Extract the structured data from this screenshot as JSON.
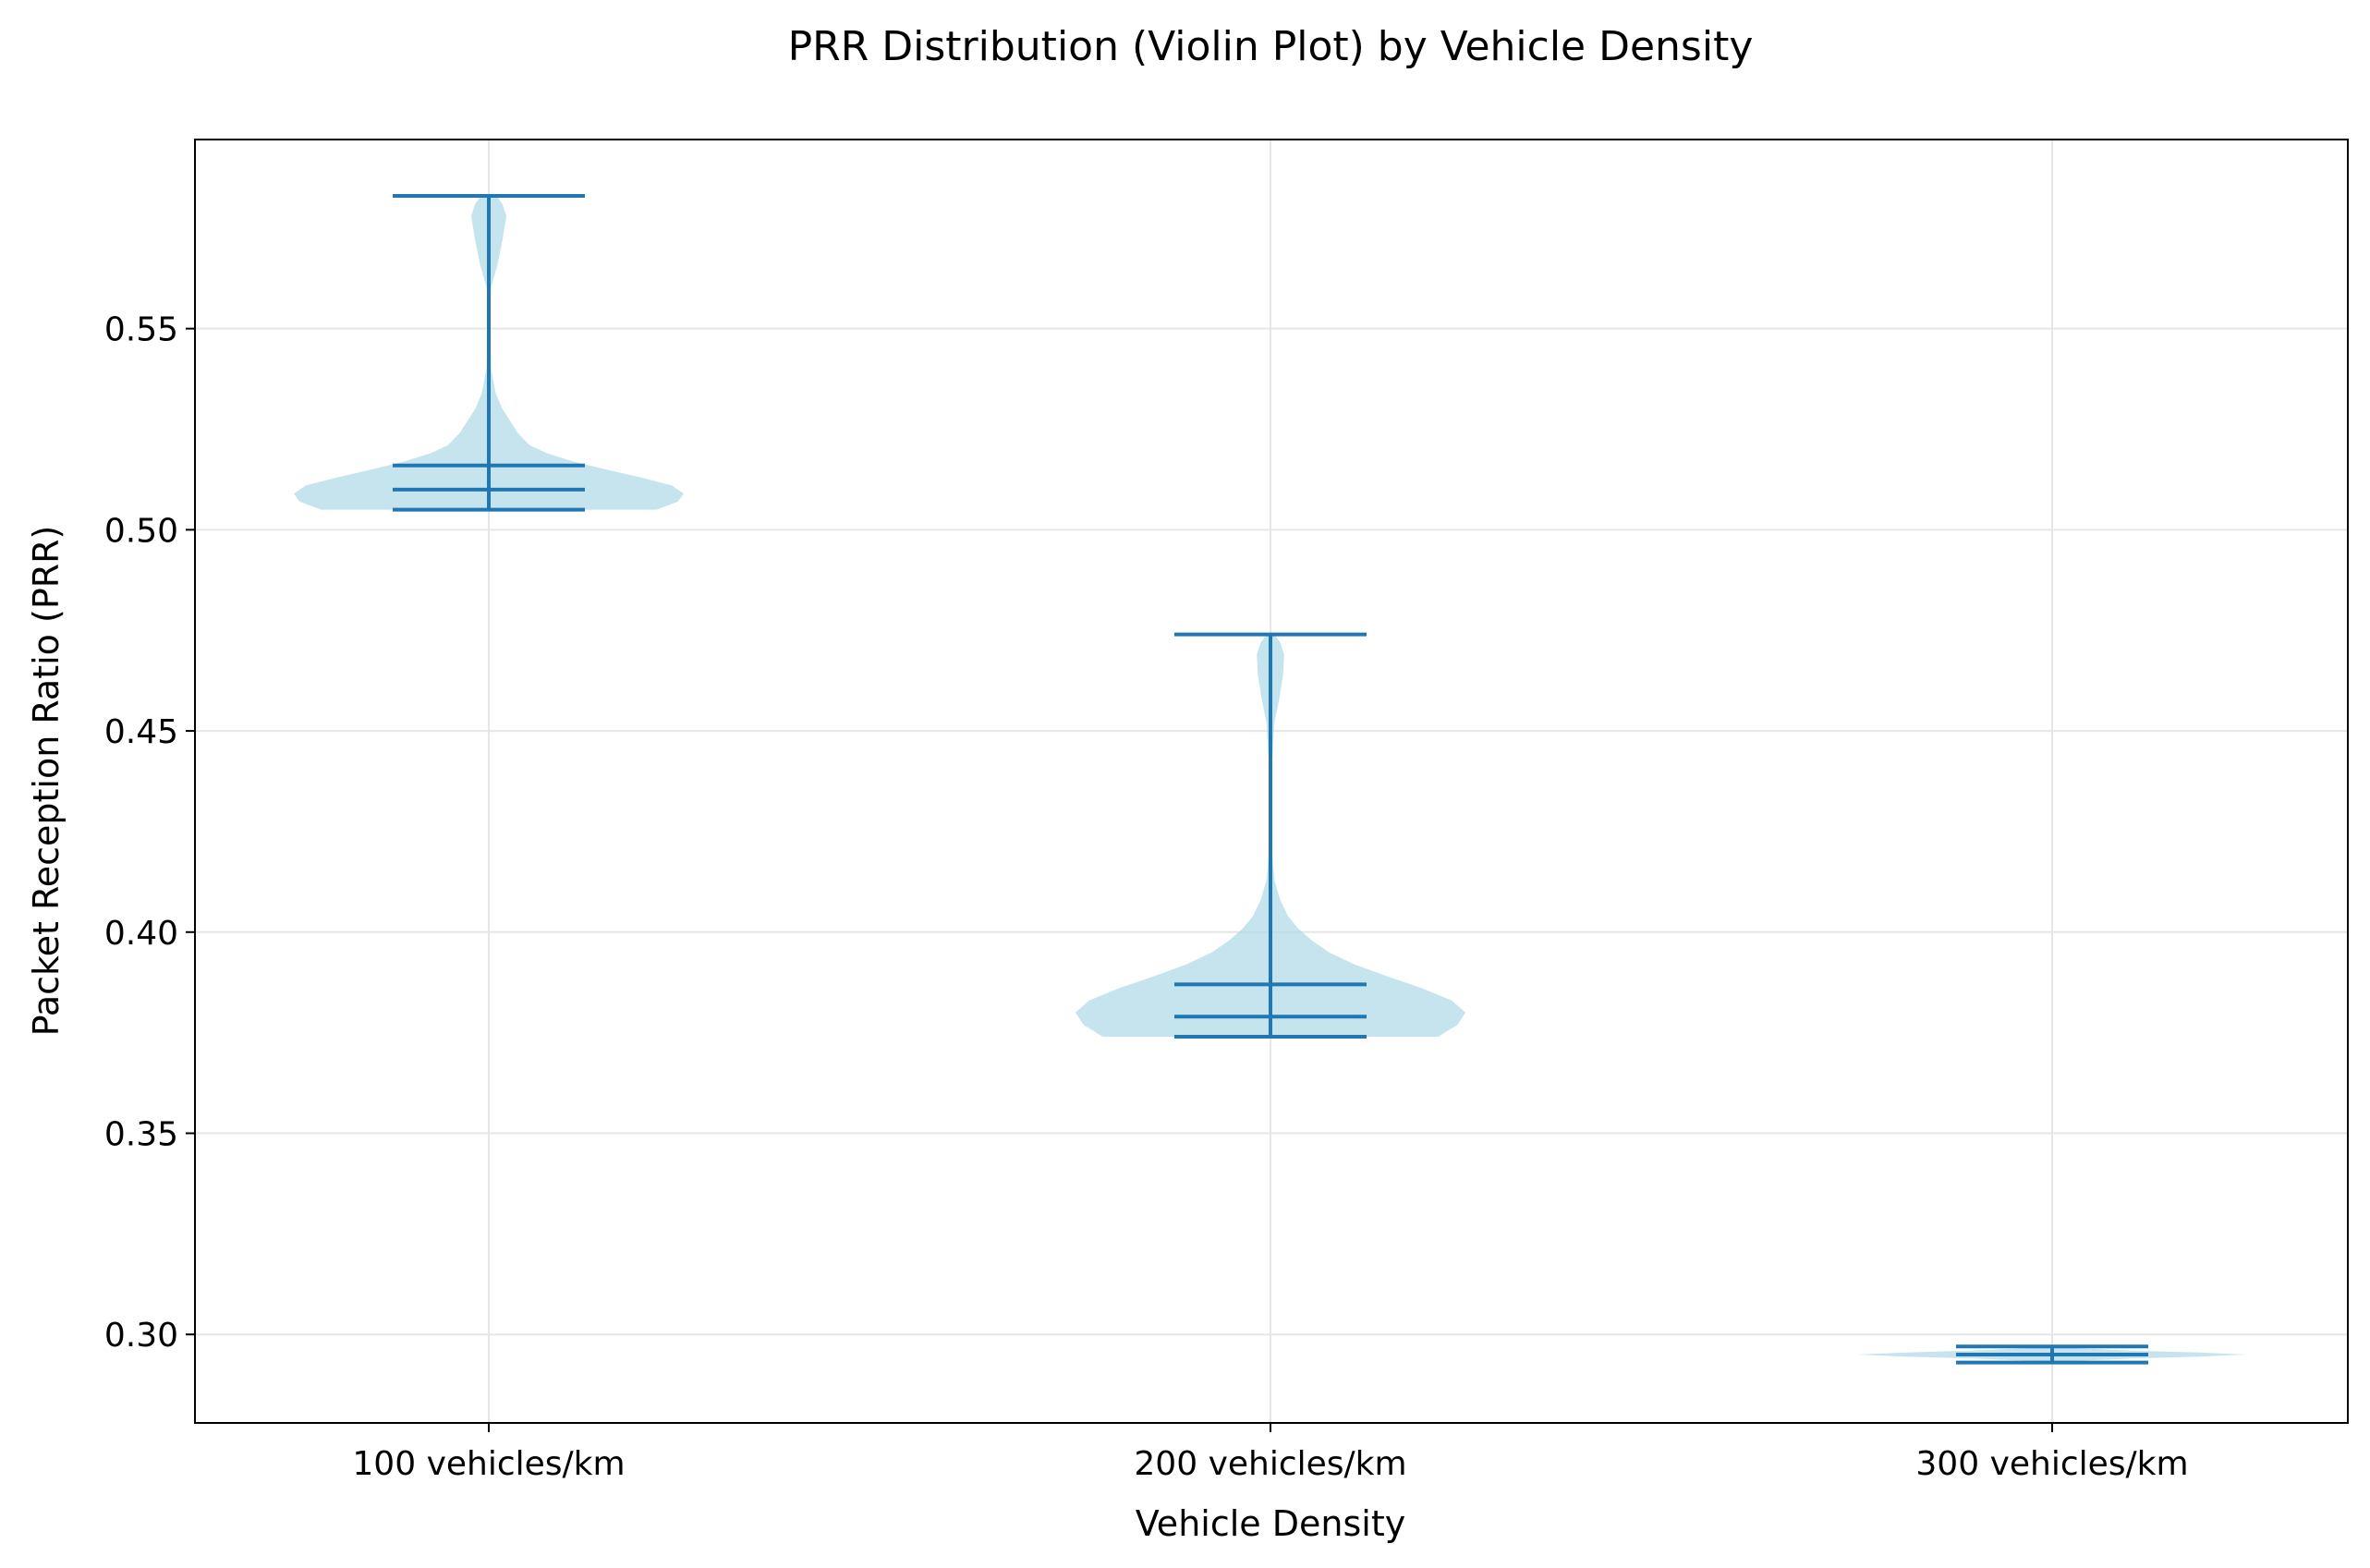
{
  "chart_data": {
    "type": "violin",
    "title": "PRR Distribution (Violin Plot) by Vehicle Density",
    "xlabel": "Vehicle Density",
    "ylabel": "Packet Reception Ratio (PRR)",
    "ylim": [
      0.278,
      0.597
    ],
    "yticks": [
      0.3,
      0.35,
      0.4,
      0.45,
      0.5,
      0.55
    ],
    "ytick_labels": [
      "0.30",
      "0.35",
      "0.40",
      "0.45",
      "0.50",
      "0.55"
    ],
    "categories": [
      "100 vehicles/km",
      "200 vehicles/km",
      "300 vehicles/km"
    ],
    "grid": true,
    "colors": {
      "violin_fill": "#add8e6",
      "lines": "#1f77b4",
      "grid": "#e6e6e6"
    },
    "violins": [
      {
        "category": "100 vehicles/km",
        "min": 0.505,
        "max": 0.583,
        "median": 0.51,
        "mean": 0.516,
        "density": [
          [
            0.505,
            0.86
          ],
          [
            0.507,
            0.97
          ],
          [
            0.509,
            1.0
          ],
          [
            0.511,
            0.94
          ],
          [
            0.513,
            0.78
          ],
          [
            0.515,
            0.6
          ],
          [
            0.517,
            0.43
          ],
          [
            0.519,
            0.3
          ],
          [
            0.521,
            0.21
          ],
          [
            0.524,
            0.15
          ],
          [
            0.527,
            0.11
          ],
          [
            0.53,
            0.07
          ],
          [
            0.534,
            0.035
          ],
          [
            0.54,
            0.012
          ],
          [
            0.55,
            0.005
          ],
          [
            0.56,
            0.01
          ],
          [
            0.566,
            0.045
          ],
          [
            0.572,
            0.07
          ],
          [
            0.578,
            0.09
          ],
          [
            0.581,
            0.07
          ],
          [
            0.583,
            0.04
          ]
        ]
      },
      {
        "category": "200 vehicles/km",
        "min": 0.374,
        "max": 0.474,
        "median": 0.379,
        "mean": 0.387,
        "density": [
          [
            0.374,
            0.86
          ],
          [
            0.377,
            0.96
          ],
          [
            0.38,
            1.0
          ],
          [
            0.383,
            0.93
          ],
          [
            0.386,
            0.78
          ],
          [
            0.389,
            0.6
          ],
          [
            0.392,
            0.43
          ],
          [
            0.395,
            0.3
          ],
          [
            0.398,
            0.21
          ],
          [
            0.401,
            0.14
          ],
          [
            0.404,
            0.09
          ],
          [
            0.408,
            0.05
          ],
          [
            0.413,
            0.02
          ],
          [
            0.42,
            0.008
          ],
          [
            0.44,
            0.006
          ],
          [
            0.452,
            0.02
          ],
          [
            0.458,
            0.045
          ],
          [
            0.464,
            0.065
          ],
          [
            0.469,
            0.07
          ],
          [
            0.472,
            0.05
          ],
          [
            0.474,
            0.02
          ]
        ]
      },
      {
        "category": "300 vehicles/km",
        "min": 0.293,
        "max": 0.297,
        "median": 0.295,
        "mean": 0.295,
        "density": [
          [
            0.293,
            0.0
          ],
          [
            0.2935,
            0.15
          ],
          [
            0.294,
            0.4
          ],
          [
            0.2945,
            0.75
          ],
          [
            0.295,
            1.0
          ],
          [
            0.2955,
            0.75
          ],
          [
            0.296,
            0.4
          ],
          [
            0.2965,
            0.15
          ],
          [
            0.297,
            0.0
          ]
        ]
      }
    ]
  }
}
